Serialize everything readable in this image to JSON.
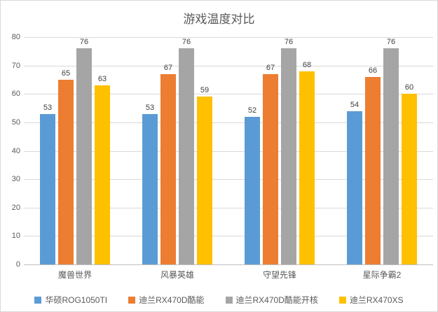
{
  "chart_data": {
    "type": "bar",
    "title": "游戏温度对比",
    "categories": [
      "魔兽世界",
      "风暴英雄",
      "守望先锋",
      "星际争霸2"
    ],
    "series": [
      {
        "name": "华硕ROG1050TI",
        "color": "#5b9bd5",
        "values": [
          53,
          53,
          52,
          54
        ]
      },
      {
        "name": "迪兰RX470D酷能",
        "color": "#ed7d31",
        "values": [
          65,
          67,
          67,
          66
        ]
      },
      {
        "name": "迪兰RX470D酷能开核",
        "color": "#a5a5a5",
        "values": [
          76,
          76,
          76,
          76
        ]
      },
      {
        "name": "迪兰RX470XS",
        "color": "#ffc000",
        "values": [
          63,
          59,
          68,
          60
        ]
      }
    ],
    "xlabel": "",
    "ylabel": "",
    "ylim": [
      0,
      80
    ],
    "yticks": [
      0,
      10,
      20,
      30,
      40,
      50,
      60,
      70,
      80
    ],
    "grid": true,
    "data_labels": true,
    "legend_position": "bottom",
    "colors": {
      "title_text": "#595959",
      "axis_text": "#595959",
      "data_label_text": "#404040",
      "gridline": "#d9d9d9",
      "axis_line": "#bfbfbf",
      "background": "#ffffff",
      "border": "#d9d9d9"
    }
  }
}
